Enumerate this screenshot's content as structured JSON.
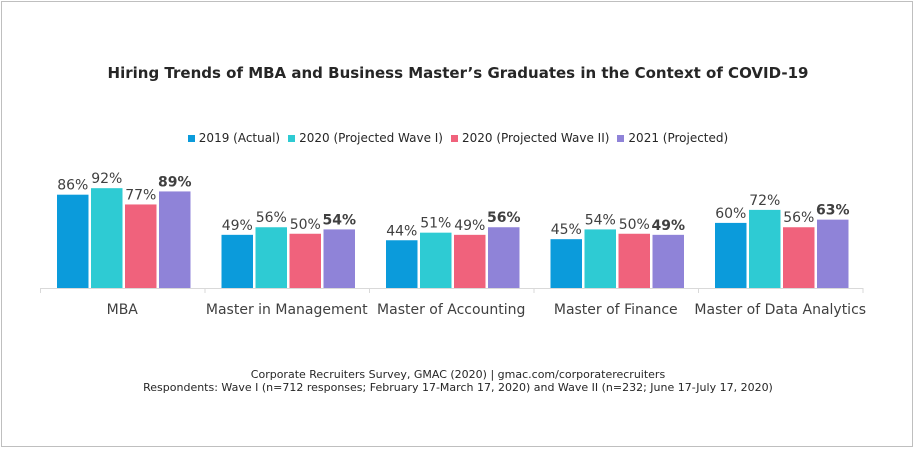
{
  "chart_data": {
    "type": "bar",
    "title": "Hiring Trends of MBA and Business Master’s Graduates in the Context of COVID-19",
    "categories": [
      "MBA",
      "Master in Management",
      "Master of Accounting",
      "Master of Finance",
      "Master of Data Analytics"
    ],
    "series": [
      {
        "name": "2019 (Actual)",
        "color": "#0b9bdb",
        "values": [
          86,
          49,
          44,
          45,
          60
        ],
        "labels": [
          "86%",
          "49%",
          "44%",
          "45%",
          "60%"
        ]
      },
      {
        "name": "2020 (Projected Wave I)",
        "color": "#2ecbd3",
        "values": [
          92,
          56,
          51,
          54,
          72
        ],
        "labels": [
          "92%",
          "56%",
          "51%",
          "54%",
          "72%"
        ]
      },
      {
        "name": "2020 (Projected Wave II)",
        "color": "#f0627c",
        "values": [
          77,
          50,
          49,
          50,
          56
        ],
        "labels": [
          "77%",
          "50%",
          "49%",
          "50%",
          "56%"
        ]
      },
      {
        "name": "2021 (Projected)",
        "color": "#8f83d8",
        "values": [
          89,
          54,
          56,
          49,
          63
        ],
        "labels": [
          "89%",
          "54%",
          "56%",
          "49%",
          "63%"
        ],
        "bold_labels": true
      }
    ],
    "ylim": [
      0,
      100
    ],
    "legend_position": "top",
    "grid": false
  },
  "footer": {
    "source": "Corporate Recruiters Survey, GMAC (2020) | gmac.com/corporaterecruiters",
    "respondents": "Respondents: Wave I (n=712 responses; February 17-March 17, 2020) and Wave II (n=232; June 17-July 17, 2020)"
  }
}
